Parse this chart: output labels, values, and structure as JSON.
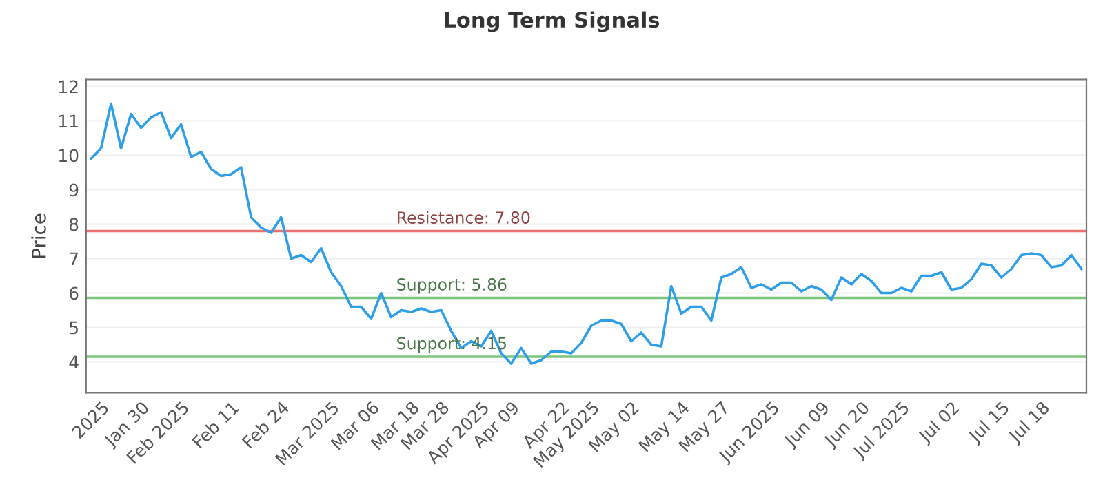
{
  "chart_data": {
    "type": "line",
    "title": "Long Term Signals",
    "ylabel": "Price",
    "categories": [
      null,
      "2025",
      null,
      null,
      null,
      "Jan 30",
      null,
      null,
      null,
      "Feb 2025",
      null,
      null,
      null,
      null,
      "Feb 11",
      null,
      null,
      null,
      null,
      "Feb 24",
      null,
      null,
      null,
      null,
      "Mar 2025",
      null,
      null,
      null,
      "Mar 06",
      null,
      null,
      null,
      "Mar 18",
      null,
      null,
      "Mar 28",
      null,
      null,
      null,
      "Apr 2025",
      null,
      null,
      "Apr 09",
      null,
      null,
      null,
      null,
      "Apr 22",
      null,
      null,
      "May 2025",
      null,
      null,
      null,
      "May 02",
      null,
      null,
      null,
      null,
      "May 14",
      null,
      null,
      null,
      "May 27",
      null,
      null,
      null,
      null,
      "Jun 2025",
      null,
      null,
      null,
      null,
      "Jun 09",
      null,
      null,
      null,
      "Jun 20",
      null,
      null,
      null,
      "Jul 2025",
      null,
      null,
      null,
      null,
      "Jul 02",
      null,
      null,
      null,
      null,
      "Jul 15",
      null,
      null,
      null,
      "Jul 18",
      null,
      null,
      null,
      null
    ],
    "series": [
      {
        "color": "#2f9ee8",
        "values": [
          9.9,
          10.2,
          11.5,
          10.2,
          11.2,
          10.8,
          11.1,
          11.25,
          10.5,
          10.9,
          9.95,
          10.1,
          9.6,
          9.4,
          9.45,
          9.65,
          8.2,
          7.9,
          7.75,
          8.2,
          7.0,
          7.1,
          6.9,
          7.3,
          6.6,
          6.2,
          5.6,
          5.6,
          5.25,
          6.0,
          5.3,
          5.5,
          5.45,
          5.55,
          5.45,
          5.5,
          4.9,
          4.4,
          4.6,
          4.45,
          4.9,
          4.25,
          3.95,
          4.4,
          3.95,
          4.05,
          4.3,
          4.3,
          4.25,
          4.55,
          5.05,
          5.2,
          5.2,
          5.1,
          4.6,
          4.85,
          4.5,
          4.45,
          6.2,
          5.4,
          5.6,
          5.6,
          5.2,
          6.45,
          6.55,
          6.75,
          6.15,
          6.25,
          6.1,
          6.3,
          6.3,
          6.05,
          6.2,
          6.1,
          5.8,
          6.45,
          6.25,
          6.55,
          6.35,
          6.0,
          6.0,
          6.15,
          6.05,
          6.5,
          6.5,
          6.6,
          6.1,
          6.15,
          6.4,
          6.85,
          6.8,
          6.45,
          6.7,
          7.1,
          7.15,
          7.1,
          6.75,
          6.8,
          7.1,
          6.7
        ]
      }
    ],
    "ylim": [
      3.1,
      12.2
    ],
    "yticks": [
      4,
      5,
      6,
      7,
      8,
      9,
      10,
      11,
      12
    ],
    "grid": "y",
    "legend": false,
    "ref_lines": [
      {
        "axis": "y",
        "value": 7.8,
        "label": "Resistance: 7.80",
        "color": "#e87070"
      },
      {
        "axis": "y",
        "value": 5.86,
        "label": "Support: 5.86",
        "color": "#7cc47c"
      },
      {
        "axis": "y",
        "value": 4.15,
        "label": "Support: 4.15",
        "color": "#7cc47c"
      }
    ]
  }
}
